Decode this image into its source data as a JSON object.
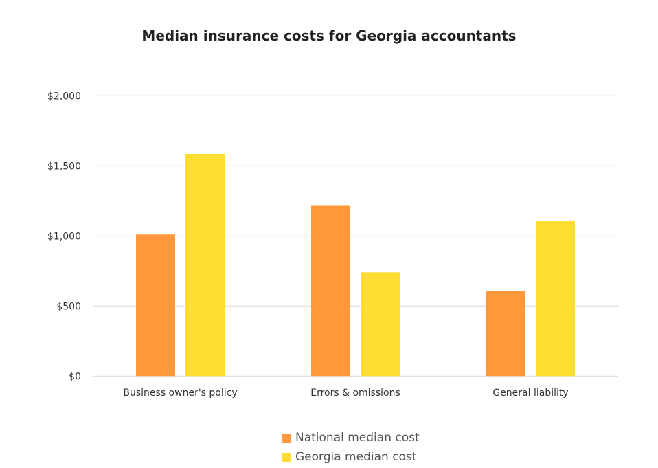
{
  "chart_data": {
    "type": "bar",
    "title": "Median insurance costs for Georgia accountants",
    "categories": [
      "Business owner's policy",
      "Errors & omissions",
      "General liability"
    ],
    "series": [
      {
        "name": "National median cost",
        "values": [
          1010,
          1215,
          605
        ],
        "color": "#FF983A"
      },
      {
        "name": "Georgia median cost",
        "values": [
          1585,
          740,
          1105
        ],
        "color": "#FFDD33"
      }
    ],
    "ylim": [
      0,
      2000
    ],
    "yticks": [
      0,
      500,
      1000,
      1500,
      2000
    ],
    "ytick_labels": [
      "$0",
      "$500",
      "$1,000",
      "$1,500",
      "$2,000"
    ],
    "grid": true,
    "legend_position": "bottom",
    "xlabel": "",
    "ylabel": ""
  }
}
